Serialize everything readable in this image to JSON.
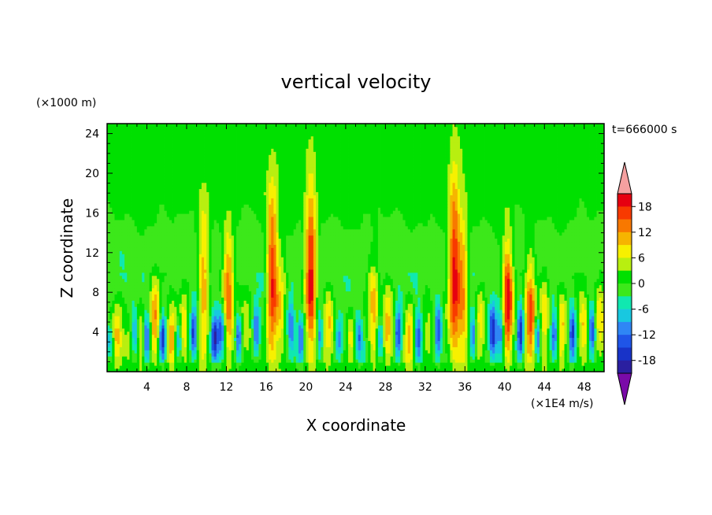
{
  "chart_data": {
    "type": "heatmap",
    "title": "vertical velocity",
    "xlabel": "X coordinate",
    "ylabel": "Z coordinate",
    "y_unit_label": "(×1000 m)",
    "x_unit_label": "(×1E4 m/s)",
    "time_label": "t=666000 s",
    "xlim": [
      0,
      50
    ],
    "ylim": [
      0,
      25
    ],
    "x_ticks": [
      "4",
      "8",
      "12",
      "16",
      "20",
      "24",
      "28",
      "32",
      "36",
      "40",
      "44",
      "48"
    ],
    "y_ticks": [
      "4",
      "8",
      "12",
      "16",
      "20",
      "24"
    ],
    "colorbar": {
      "levels": [
        -21,
        -18,
        -15,
        -12,
        -9,
        -6,
        -3,
        0,
        3,
        6,
        9,
        12,
        15,
        18,
        21
      ],
      "tick_labels": [
        "18",
        "12",
        "6",
        "0",
        "-6",
        "-12",
        "-18"
      ],
      "colors": [
        "#7a0aa8",
        "#2a1fa0",
        "#1833c8",
        "#1f55e8",
        "#2f86f5",
        "#18c8e0",
        "#10e8b0",
        "#3ce81a",
        "#00e000",
        "#b8ef10",
        "#f7f000",
        "#f6b400",
        "#f87800",
        "#f83a00",
        "#e60010",
        "#f5a0a0"
      ],
      "over_color": "#f5a0a0",
      "under_color": "#7a0aa8"
    },
    "updrafts": [
      {
        "x": 1.0,
        "height": 9,
        "strength": 9
      },
      {
        "x": 2.2,
        "height": 6,
        "strength": 6
      },
      {
        "x": 3.3,
        "height": 9,
        "strength": 8
      },
      {
        "x": 4.8,
        "height": 11,
        "strength": 14
      },
      {
        "x": 6.5,
        "height": 8,
        "strength": 12
      },
      {
        "x": 7.7,
        "height": 10,
        "strength": 9
      },
      {
        "x": 9.7,
        "height": 19,
        "strength": 14
      },
      {
        "x": 12.2,
        "height": 17,
        "strength": 16
      },
      {
        "x": 14.0,
        "height": 9,
        "strength": 6
      },
      {
        "x": 16.6,
        "height": 21,
        "strength": 20
      },
      {
        "x": 17.5,
        "height": 14,
        "strength": 10
      },
      {
        "x": 20.5,
        "height": 22,
        "strength": 21
      },
      {
        "x": 22.3,
        "height": 11,
        "strength": 9
      },
      {
        "x": 24.5,
        "height": 8,
        "strength": 8
      },
      {
        "x": 26.8,
        "height": 13,
        "strength": 12
      },
      {
        "x": 28.2,
        "height": 11,
        "strength": 10
      },
      {
        "x": 30.4,
        "height": 9,
        "strength": 12
      },
      {
        "x": 32.3,
        "height": 8,
        "strength": 8
      },
      {
        "x": 34.9,
        "height": 23,
        "strength": 20
      },
      {
        "x": 35.8,
        "height": 19,
        "strength": 14
      },
      {
        "x": 37.6,
        "height": 11,
        "strength": 9
      },
      {
        "x": 40.3,
        "height": 16,
        "strength": 21
      },
      {
        "x": 42.6,
        "height": 14,
        "strength": 18
      },
      {
        "x": 44.0,
        "height": 12,
        "strength": 10
      },
      {
        "x": 45.7,
        "height": 10,
        "strength": 12
      },
      {
        "x": 47.9,
        "height": 10,
        "strength": 10
      },
      {
        "x": 49.6,
        "height": 12,
        "strength": 8
      }
    ],
    "downdrafts": [
      {
        "x": 0.3,
        "height": 6,
        "strength": 9
      },
      {
        "x": 2.8,
        "height": 7,
        "strength": 12
      },
      {
        "x": 4.0,
        "height": 7,
        "strength": 16
      },
      {
        "x": 5.6,
        "height": 7,
        "strength": 18
      },
      {
        "x": 7.2,
        "height": 7,
        "strength": 14
      },
      {
        "x": 8.7,
        "height": 8,
        "strength": 15
      },
      {
        "x": 10.8,
        "height": 7,
        "strength": 17
      },
      {
        "x": 11.5,
        "height": 8,
        "strength": 12
      },
      {
        "x": 13.2,
        "height": 7,
        "strength": 14
      },
      {
        "x": 15.0,
        "height": 8,
        "strength": 12
      },
      {
        "x": 18.5,
        "height": 9,
        "strength": 10
      },
      {
        "x": 19.5,
        "height": 7,
        "strength": 13
      },
      {
        "x": 21.4,
        "height": 7,
        "strength": 12
      },
      {
        "x": 23.3,
        "height": 6,
        "strength": 9
      },
      {
        "x": 25.3,
        "height": 7,
        "strength": 11
      },
      {
        "x": 27.5,
        "height": 7,
        "strength": 12
      },
      {
        "x": 29.3,
        "height": 8,
        "strength": 15
      },
      {
        "x": 31.3,
        "height": 7,
        "strength": 15
      },
      {
        "x": 33.3,
        "height": 8,
        "strength": 14
      },
      {
        "x": 36.8,
        "height": 7,
        "strength": 13
      },
      {
        "x": 38.8,
        "height": 8,
        "strength": 15
      },
      {
        "x": 39.6,
        "height": 8,
        "strength": 12
      },
      {
        "x": 41.6,
        "height": 8,
        "strength": 18
      },
      {
        "x": 43.3,
        "height": 7,
        "strength": 16
      },
      {
        "x": 45.0,
        "height": 7,
        "strength": 14
      },
      {
        "x": 46.8,
        "height": 8,
        "strength": 15
      },
      {
        "x": 48.8,
        "height": 8,
        "strength": 17
      }
    ]
  }
}
